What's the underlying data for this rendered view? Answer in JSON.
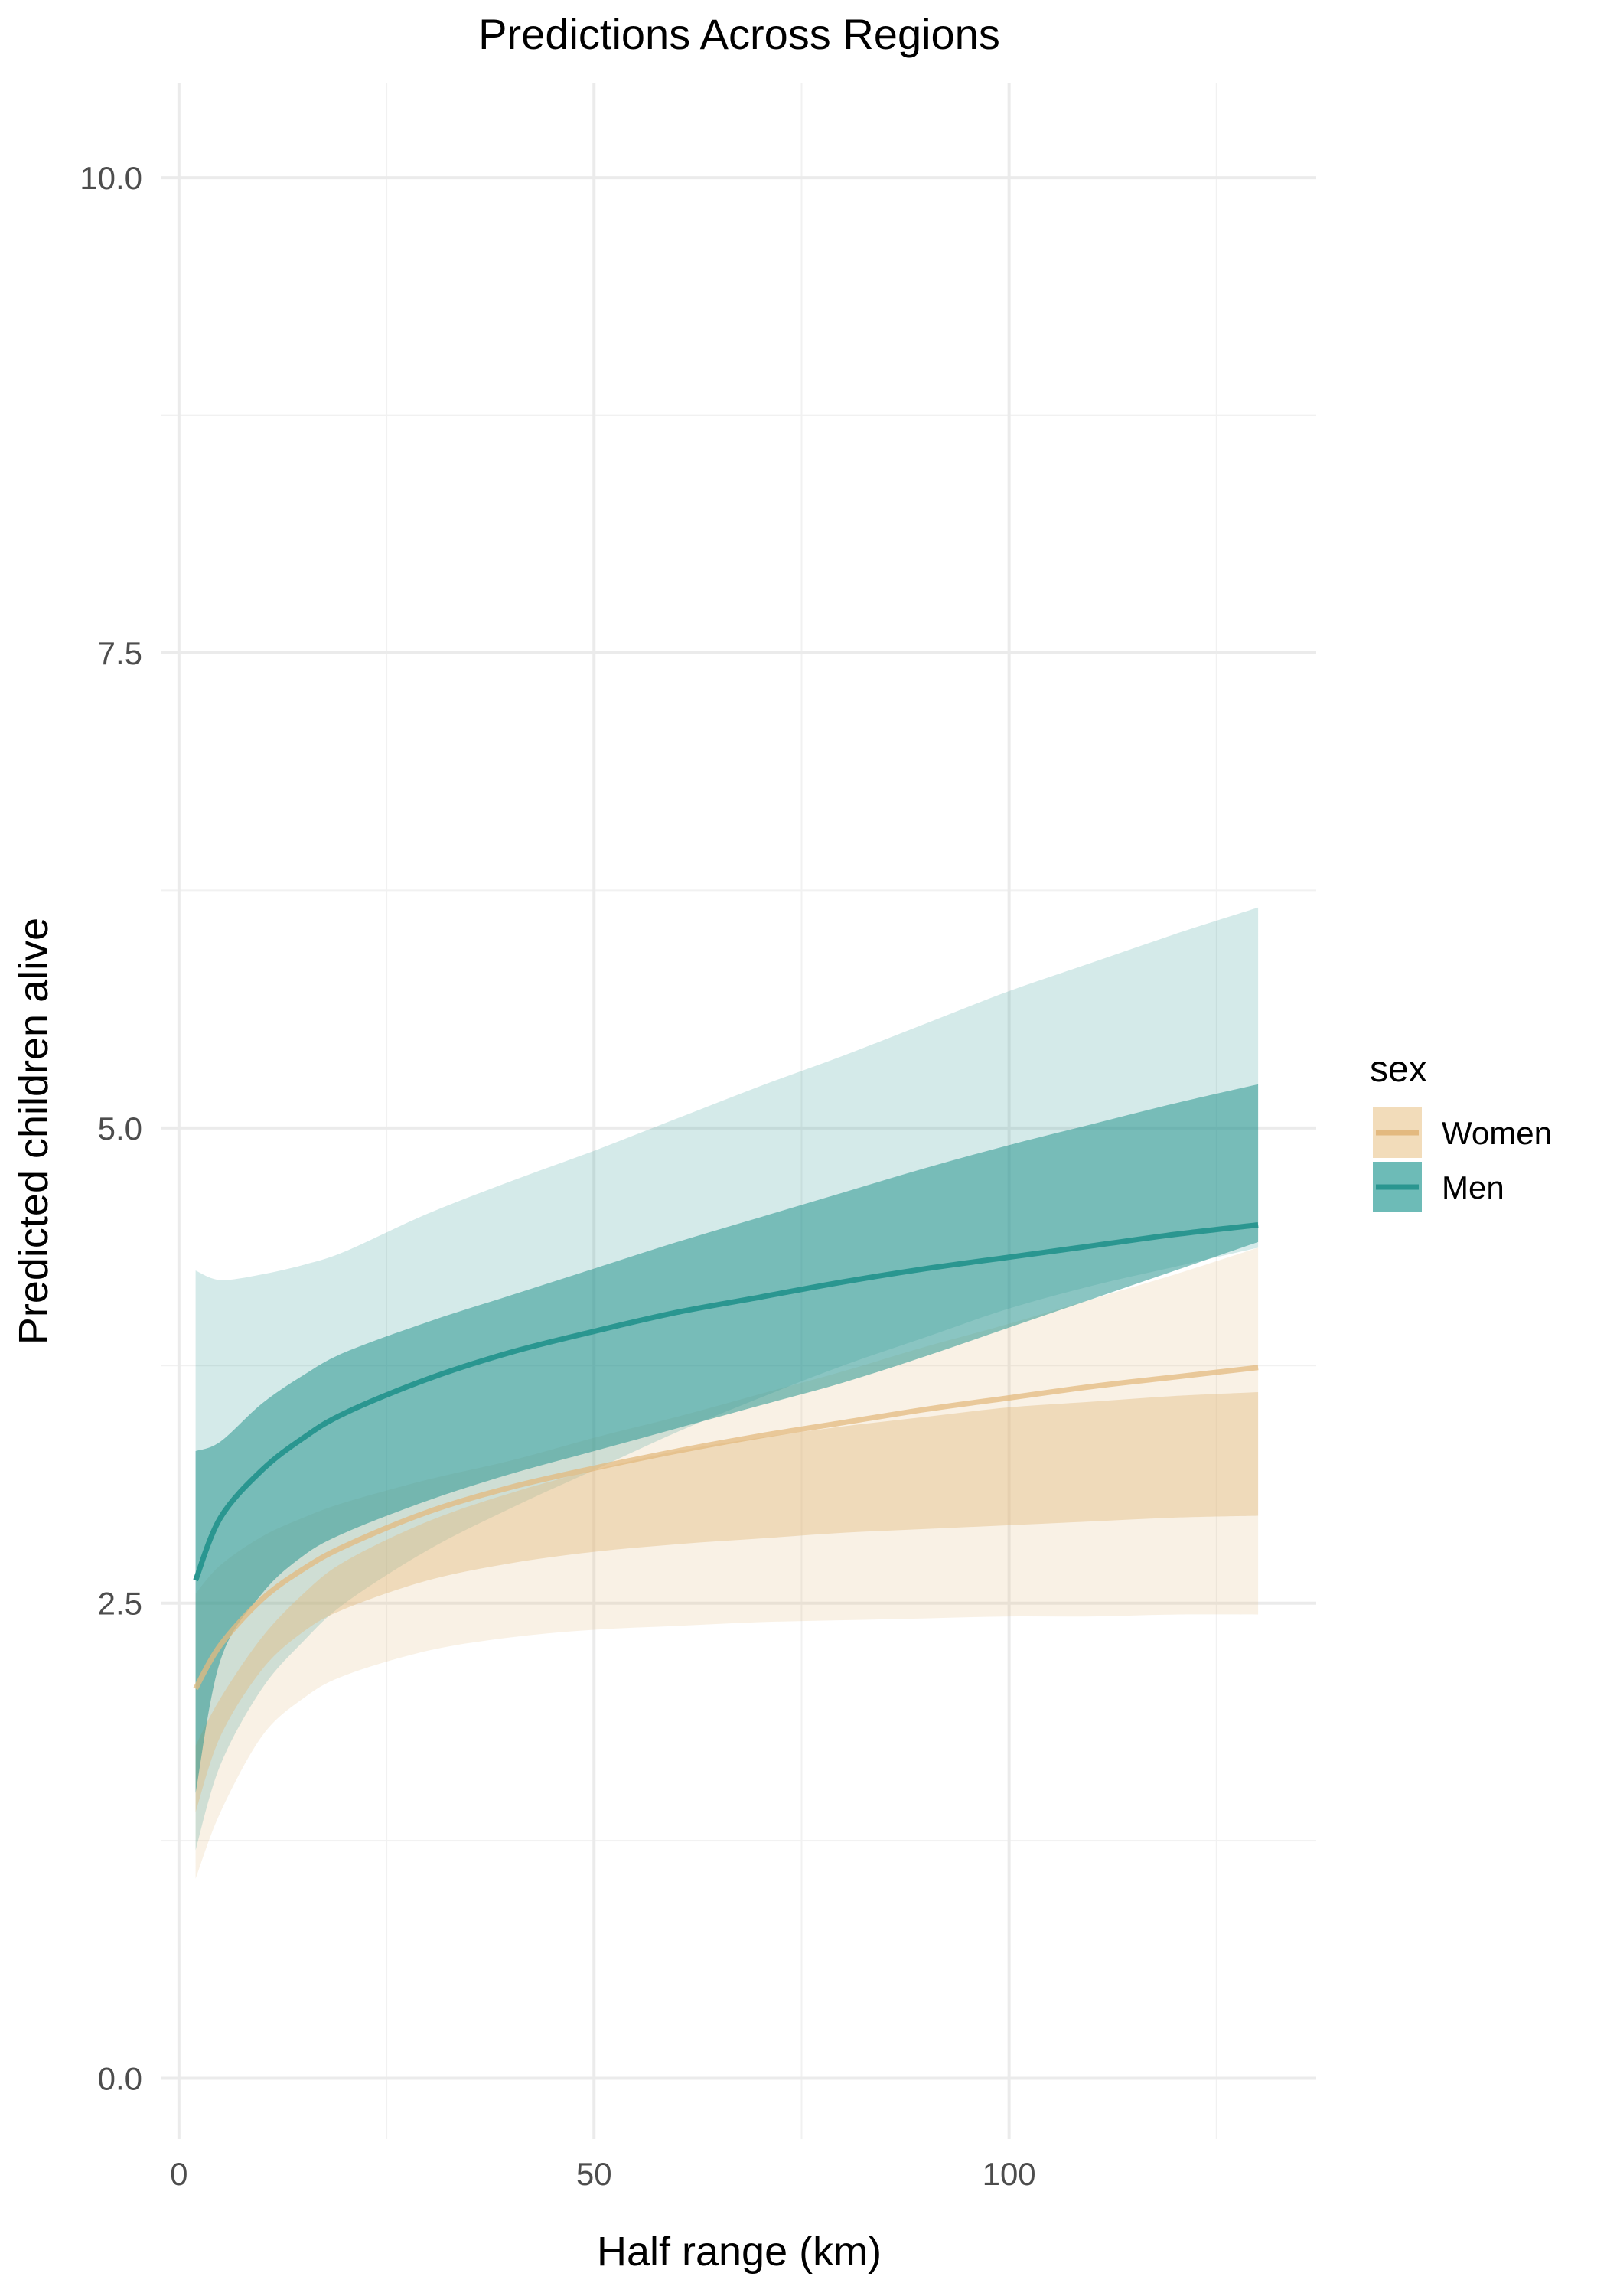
{
  "chart_data": {
    "type": "area",
    "title": "Predictions Across Regions",
    "xlabel": "Half range (km)",
    "ylabel": "Predicted children alive",
    "xlim": [
      -2.2,
      137
    ],
    "ylim": [
      -0.32,
      10.5
    ],
    "x_ticks": [
      0,
      50,
      100
    ],
    "x_tick_labels": [
      "0",
      "50",
      "100"
    ],
    "x_minor_ticks": [
      25,
      75,
      125
    ],
    "y_ticks": [
      0,
      2.5,
      5,
      7.5,
      10
    ],
    "y_tick_labels": [
      "0.0",
      "2.5",
      "5.0",
      "7.5",
      "10.0"
    ],
    "y_minor_ticks": [
      1.25,
      3.75,
      6.25,
      8.75
    ],
    "grid": true,
    "legend": {
      "title": "sex",
      "position": "right",
      "entries": [
        "Women",
        "Men"
      ]
    },
    "x": [
      2,
      5,
      10,
      15,
      20,
      30,
      40,
      50,
      60,
      70,
      80,
      90,
      100,
      110,
      120,
      130
    ],
    "series": [
      {
        "name": "Women",
        "color": "#e3b97f",
        "mean": [
          2.05,
          2.28,
          2.52,
          2.68,
          2.8,
          2.98,
          3.11,
          3.21,
          3.3,
          3.38,
          3.45,
          3.52,
          3.58,
          3.64,
          3.69,
          3.74
        ],
        "inner_lower": [
          1.4,
          1.8,
          2.15,
          2.35,
          2.47,
          2.62,
          2.71,
          2.77,
          2.81,
          2.84,
          2.87,
          2.89,
          2.91,
          2.93,
          2.95,
          2.96
        ],
        "inner_upper": [
          1.75,
          2.0,
          2.32,
          2.55,
          2.72,
          2.93,
          3.08,
          3.2,
          3.3,
          3.37,
          3.43,
          3.48,
          3.53,
          3.56,
          3.59,
          3.61
        ],
        "outer_lower": [
          1.05,
          1.4,
          1.8,
          2.0,
          2.12,
          2.25,
          2.32,
          2.36,
          2.38,
          2.4,
          2.41,
          2.42,
          2.43,
          2.43,
          2.44,
          2.44
        ],
        "outer_upper": [
          2.55,
          2.7,
          2.85,
          2.95,
          3.03,
          3.15,
          3.25,
          3.37,
          3.48,
          3.6,
          3.72,
          3.85,
          3.97,
          4.1,
          4.23,
          4.37
        ]
      },
      {
        "name": "Men",
        "color": "#2a9690",
        "mean": [
          2.62,
          2.95,
          3.2,
          3.37,
          3.5,
          3.68,
          3.82,
          3.93,
          4.03,
          4.11,
          4.19,
          4.26,
          4.32,
          4.38,
          4.44,
          4.49
        ],
        "inner_lower": [
          1.5,
          2.2,
          2.55,
          2.75,
          2.87,
          3.04,
          3.18,
          3.3,
          3.42,
          3.54,
          3.66,
          3.8,
          3.95,
          4.1,
          4.25,
          4.4
        ],
        "inner_upper": [
          3.3,
          3.35,
          3.55,
          3.7,
          3.82,
          3.98,
          4.12,
          4.26,
          4.4,
          4.53,
          4.66,
          4.79,
          4.91,
          5.02,
          5.13,
          5.23
        ],
        "outer_lower": [
          1.2,
          1.65,
          2.05,
          2.3,
          2.5,
          2.78,
          3.0,
          3.2,
          3.4,
          3.58,
          3.75,
          3.9,
          4.05,
          4.17,
          4.27,
          4.37
        ],
        "outer_upper": [
          4.25,
          4.2,
          4.23,
          4.28,
          4.35,
          4.55,
          4.72,
          4.88,
          5.05,
          5.22,
          5.38,
          5.55,
          5.72,
          5.87,
          6.02,
          6.16
        ]
      }
    ]
  }
}
